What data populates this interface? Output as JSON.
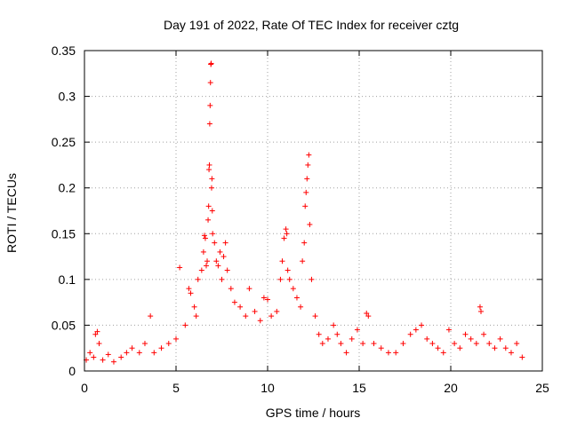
{
  "chart_data": {
    "type": "scatter",
    "title": "Day 191 of 2022, Rate Of TEC Index for receiver cztg",
    "xlabel": "GPS time / hours",
    "ylabel": "ROTI / TECUs",
    "xlim": [
      0,
      25
    ],
    "ylim": [
      0,
      0.35
    ],
    "xticks": [
      0,
      5,
      10,
      15,
      20,
      25
    ],
    "xtick_labels": [
      "0",
      "5",
      "10",
      "15",
      "20",
      "25"
    ],
    "yticks": [
      0,
      0.05,
      0.1,
      0.15,
      0.2,
      0.25,
      0.3,
      0.35
    ],
    "ytick_labels": [
      "0",
      "0.05",
      "0.1",
      "0.15",
      "0.2",
      "0.25",
      "0.3",
      "0.35"
    ],
    "grid": true,
    "marker": "plus",
    "marker_color": "#ff0000",
    "series": [
      {
        "name": "ROTI",
        "points": [
          [
            0.1,
            0.012
          ],
          [
            0.3,
            0.02
          ],
          [
            0.5,
            0.015
          ],
          [
            0.6,
            0.04
          ],
          [
            0.7,
            0.043
          ],
          [
            0.8,
            0.03
          ],
          [
            1.0,
            0.012
          ],
          [
            1.3,
            0.018
          ],
          [
            1.6,
            0.01
          ],
          [
            2.0,
            0.015
          ],
          [
            2.3,
            0.02
          ],
          [
            2.6,
            0.025
          ],
          [
            3.0,
            0.02
          ],
          [
            3.3,
            0.03
          ],
          [
            3.6,
            0.06
          ],
          [
            3.8,
            0.02
          ],
          [
            4.2,
            0.025
          ],
          [
            4.6,
            0.03
          ],
          [
            5.0,
            0.035
          ],
          [
            5.2,
            0.113
          ],
          [
            5.5,
            0.05
          ],
          [
            5.7,
            0.09
          ],
          [
            5.8,
            0.085
          ],
          [
            6.0,
            0.07
          ],
          [
            6.1,
            0.06
          ],
          [
            6.2,
            0.1
          ],
          [
            6.4,
            0.11
          ],
          [
            6.5,
            0.13
          ],
          [
            6.55,
            0.148
          ],
          [
            6.6,
            0.145
          ],
          [
            6.65,
            0.115
          ],
          [
            6.7,
            0.12
          ],
          [
            6.75,
            0.165
          ],
          [
            6.78,
            0.18
          ],
          [
            6.8,
            0.22
          ],
          [
            6.82,
            0.225
          ],
          [
            6.84,
            0.27
          ],
          [
            6.86,
            0.29
          ],
          [
            6.88,
            0.315
          ],
          [
            6.9,
            0.335
          ],
          [
            6.92,
            0.336
          ],
          [
            6.94,
            0.2
          ],
          [
            6.96,
            0.21
          ],
          [
            6.98,
            0.175
          ],
          [
            7.0,
            0.15
          ],
          [
            7.1,
            0.14
          ],
          [
            7.2,
            0.12
          ],
          [
            7.3,
            0.115
          ],
          [
            7.4,
            0.13
          ],
          [
            7.5,
            0.1
          ],
          [
            7.6,
            0.125
          ],
          [
            7.7,
            0.14
          ],
          [
            7.8,
            0.11
          ],
          [
            8.0,
            0.09
          ],
          [
            8.2,
            0.075
          ],
          [
            8.5,
            0.07
          ],
          [
            8.8,
            0.06
          ],
          [
            9.0,
            0.09
          ],
          [
            9.3,
            0.065
          ],
          [
            9.6,
            0.055
          ],
          [
            9.8,
            0.08
          ],
          [
            10.0,
            0.078
          ],
          [
            10.2,
            0.06
          ],
          [
            10.5,
            0.065
          ],
          [
            10.7,
            0.1
          ],
          [
            10.8,
            0.12
          ],
          [
            10.9,
            0.145
          ],
          [
            11.0,
            0.155
          ],
          [
            11.05,
            0.15
          ],
          [
            11.1,
            0.11
          ],
          [
            11.2,
            0.1
          ],
          [
            11.4,
            0.09
          ],
          [
            11.6,
            0.08
          ],
          [
            11.8,
            0.07
          ],
          [
            11.9,
            0.12
          ],
          [
            12.0,
            0.14
          ],
          [
            12.05,
            0.18
          ],
          [
            12.1,
            0.195
          ],
          [
            12.15,
            0.21
          ],
          [
            12.2,
            0.225
          ],
          [
            12.25,
            0.236
          ],
          [
            12.3,
            0.16
          ],
          [
            12.4,
            0.1
          ],
          [
            12.6,
            0.06
          ],
          [
            12.8,
            0.04
          ],
          [
            13.0,
            0.03
          ],
          [
            13.3,
            0.035
          ],
          [
            13.6,
            0.05
          ],
          [
            13.8,
            0.04
          ],
          [
            14.0,
            0.03
          ],
          [
            14.3,
            0.02
          ],
          [
            14.6,
            0.035
          ],
          [
            14.9,
            0.045
          ],
          [
            15.2,
            0.03
          ],
          [
            15.4,
            0.063
          ],
          [
            15.5,
            0.06
          ],
          [
            15.8,
            0.03
          ],
          [
            16.2,
            0.025
          ],
          [
            16.6,
            0.02
          ],
          [
            17.0,
            0.02
          ],
          [
            17.4,
            0.03
          ],
          [
            17.8,
            0.04
          ],
          [
            18.1,
            0.045
          ],
          [
            18.4,
            0.05
          ],
          [
            18.7,
            0.035
          ],
          [
            19.0,
            0.03
          ],
          [
            19.3,
            0.025
          ],
          [
            19.6,
            0.02
          ],
          [
            19.9,
            0.045
          ],
          [
            20.2,
            0.03
          ],
          [
            20.5,
            0.025
          ],
          [
            20.8,
            0.04
          ],
          [
            21.1,
            0.035
          ],
          [
            21.4,
            0.03
          ],
          [
            21.6,
            0.07
          ],
          [
            21.65,
            0.065
          ],
          [
            21.8,
            0.04
          ],
          [
            22.1,
            0.03
          ],
          [
            22.4,
            0.025
          ],
          [
            22.7,
            0.035
          ],
          [
            23.0,
            0.025
          ],
          [
            23.3,
            0.02
          ],
          [
            23.6,
            0.03
          ],
          [
            23.9,
            0.015
          ]
        ]
      }
    ]
  }
}
